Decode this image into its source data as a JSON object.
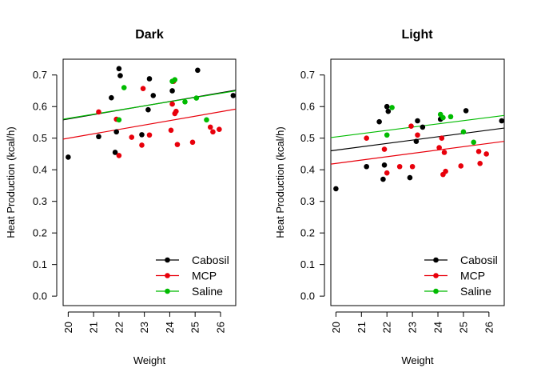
{
  "colors": {
    "Cabosil": "#000000",
    "MCP": "#e8000b",
    "Saline": "#00bb00"
  },
  "chart_data": [
    {
      "type": "scatter",
      "title": "Dark",
      "xlabel": "Weight",
      "ylabel": "Heat Production (kcal/h)",
      "xlim": [
        19.8,
        26.6
      ],
      "ylim": [
        -0.03,
        0.75
      ],
      "xticks": [
        20,
        21,
        22,
        23,
        24,
        25,
        26
      ],
      "yticks": [
        0.0,
        0.1,
        0.2,
        0.3,
        0.4,
        0.5,
        0.6,
        0.7
      ],
      "legend": "bottom-right",
      "series": [
        {
          "name": "Cabosil",
          "points": [
            [
              20.0,
              0.44
            ],
            [
              21.2,
              0.505
            ],
            [
              21.7,
              0.628
            ],
            [
              21.85,
              0.455
            ],
            [
              21.9,
              0.52
            ],
            [
              22.0,
              0.72
            ],
            [
              22.05,
              0.698
            ],
            [
              22.9,
              0.511
            ],
            [
              23.15,
              0.59
            ],
            [
              23.2,
              0.688
            ],
            [
              23.35,
              0.635
            ],
            [
              24.1,
              0.65
            ],
            [
              25.1,
              0.715
            ],
            [
              26.5,
              0.635
            ]
          ],
          "fit": [
            [
              19.8,
              0.558
            ],
            [
              26.6,
              0.652
            ]
          ]
        },
        {
          "name": "MCP",
          "points": [
            [
              21.2,
              0.583
            ],
            [
              21.9,
              0.56
            ],
            [
              22.0,
              0.445
            ],
            [
              22.5,
              0.503
            ],
            [
              22.9,
              0.478
            ],
            [
              22.95,
              0.657
            ],
            [
              23.2,
              0.51
            ],
            [
              24.05,
              0.525
            ],
            [
              24.1,
              0.608
            ],
            [
              24.15,
              0.68
            ],
            [
              24.2,
              0.578
            ],
            [
              24.25,
              0.585
            ],
            [
              24.3,
              0.48
            ],
            [
              24.9,
              0.487
            ],
            [
              25.6,
              0.535
            ],
            [
              25.7,
              0.52
            ],
            [
              25.95,
              0.528
            ]
          ],
          "fit": [
            [
              19.8,
              0.497
            ],
            [
              26.6,
              0.592
            ]
          ]
        },
        {
          "name": "Saline",
          "points": [
            [
              22.0,
              0.558
            ],
            [
              22.2,
              0.66
            ],
            [
              24.1,
              0.68
            ],
            [
              24.2,
              0.685
            ],
            [
              24.6,
              0.615
            ],
            [
              25.05,
              0.627
            ],
            [
              25.45,
              0.558
            ]
          ],
          "fit": [
            [
              19.8,
              0.56
            ],
            [
              26.6,
              0.65
            ]
          ]
        }
      ]
    },
    {
      "type": "scatter",
      "title": "Light",
      "xlabel": "Weight",
      "ylabel": "Heat Production (kcal/h)",
      "xlim": [
        19.8,
        26.6
      ],
      "ylim": [
        -0.03,
        0.75
      ],
      "xticks": [
        20,
        21,
        22,
        23,
        24,
        25,
        26
      ],
      "yticks": [
        0.0,
        0.1,
        0.2,
        0.3,
        0.4,
        0.5,
        0.6,
        0.7
      ],
      "legend": "bottom-right",
      "series": [
        {
          "name": "Cabosil",
          "points": [
            [
              20.0,
              0.34
            ],
            [
              21.2,
              0.41
            ],
            [
              21.7,
              0.552
            ],
            [
              21.85,
              0.37
            ],
            [
              21.9,
              0.415
            ],
            [
              22.0,
              0.6
            ],
            [
              22.05,
              0.585
            ],
            [
              22.9,
              0.375
            ],
            [
              23.15,
              0.49
            ],
            [
              23.2,
              0.555
            ],
            [
              23.4,
              0.535
            ],
            [
              24.1,
              0.56
            ],
            [
              25.1,
              0.587
            ],
            [
              26.5,
              0.555
            ]
          ],
          "fit": [
            [
              19.8,
              0.46
            ],
            [
              26.6,
              0.532
            ]
          ]
        },
        {
          "name": "MCP",
          "points": [
            [
              21.2,
              0.5
            ],
            [
              21.9,
              0.465
            ],
            [
              22.0,
              0.39
            ],
            [
              22.5,
              0.41
            ],
            [
              22.95,
              0.538
            ],
            [
              23.0,
              0.41
            ],
            [
              23.2,
              0.51
            ],
            [
              24.05,
              0.47
            ],
            [
              24.15,
              0.5
            ],
            [
              24.2,
              0.385
            ],
            [
              24.25,
              0.455
            ],
            [
              24.3,
              0.395
            ],
            [
              24.9,
              0.412
            ],
            [
              25.6,
              0.458
            ],
            [
              25.65,
              0.42
            ],
            [
              25.9,
              0.45
            ]
          ],
          "fit": [
            [
              19.8,
              0.418
            ],
            [
              26.6,
              0.49
            ]
          ]
        },
        {
          "name": "Saline",
          "points": [
            [
              22.0,
              0.51
            ],
            [
              22.2,
              0.597
            ],
            [
              24.1,
              0.575
            ],
            [
              24.2,
              0.565
            ],
            [
              24.5,
              0.568
            ],
            [
              25.0,
              0.52
            ],
            [
              25.4,
              0.487
            ]
          ],
          "fit": [
            [
              19.8,
              0.502
            ],
            [
              26.6,
              0.572
            ]
          ]
        }
      ]
    }
  ]
}
